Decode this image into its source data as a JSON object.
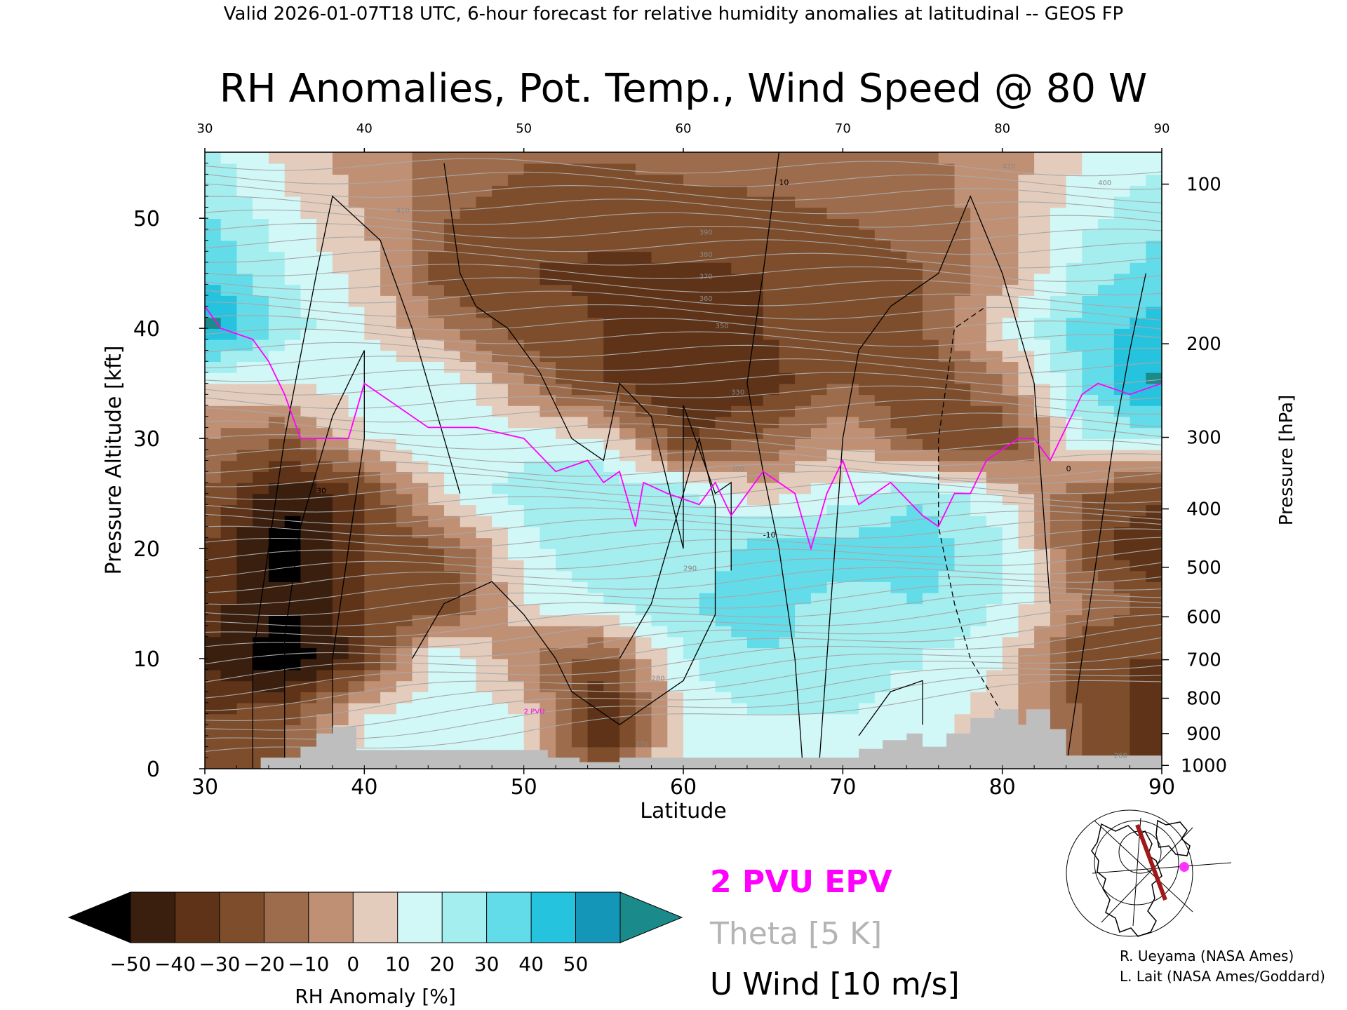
{
  "header": {
    "valid_line": "Valid 2026-01-07T18 UTC, 6-hour forecast for relative humidity anomalies at latitudinal -- GEOS FP"
  },
  "chart_data": {
    "type": "heatmap",
    "title": "RH Anomalies, Pot. Temp., Wind Speed @ 80 W",
    "xlabel": "Latitude",
    "ylabel_left": "Pressure Altitude [kft]",
    "ylabel_right": "Pressure [hPa]",
    "xlim": [
      30,
      90
    ],
    "ylim": [
      0,
      56
    ],
    "x_ticks_bottom": [
      "30",
      "40",
      "50",
      "60",
      "70",
      "80",
      "90"
    ],
    "x_ticks_top": [
      "30",
      "40",
      "50",
      "60",
      "70",
      "80",
      "90"
    ],
    "y_ticks_left": [
      {
        "value": 0,
        "label": "0"
      },
      {
        "value": 10,
        "label": "10"
      },
      {
        "value": 20,
        "label": "20"
      },
      {
        "value": 30,
        "label": "30"
      },
      {
        "value": 40,
        "label": "40"
      },
      {
        "value": 50,
        "label": "50"
      }
    ],
    "y_ticks_right": [
      {
        "kft": 0.3,
        "label": "1000"
      },
      {
        "kft": 3.2,
        "label": "900"
      },
      {
        "kft": 6.4,
        "label": "800"
      },
      {
        "kft": 9.9,
        "label": "700"
      },
      {
        "kft": 13.8,
        "label": "600"
      },
      {
        "kft": 18.3,
        "label": "500"
      },
      {
        "kft": 23.6,
        "label": "400"
      },
      {
        "kft": 30.1,
        "label": "300"
      },
      {
        "kft": 38.6,
        "label": "200"
      },
      {
        "kft": 53.1,
        "label": "100"
      }
    ],
    "colorbar": {
      "label": "RH Anomaly [%]",
      "tick_labels": [
        "−50",
        "−40",
        "−30",
        "−20",
        "−10",
        "0",
        "10",
        "20",
        "30",
        "40",
        "50"
      ],
      "bins": [
        -50,
        -40,
        -30,
        -20,
        -10,
        0,
        10,
        20,
        30,
        40,
        50
      ],
      "colors": [
        "#3a1e0e",
        "#5e3318",
        "#7d4d2c",
        "#9d6c4c",
        "#c09075",
        "#e4ccbc",
        "#d2f7f7",
        "#a4eef0",
        "#63dcea",
        "#26c3df",
        "#1496b8"
      ],
      "under_color": "#000000",
      "over_color": "#1a8a8a"
    },
    "rh_anomaly_grid": {
      "latitudes": [
        30,
        35,
        40,
        45,
        50,
        55,
        60,
        65,
        70,
        75,
        80,
        85,
        90
      ],
      "altitudes_kft": [
        55,
        45,
        40,
        35,
        30,
        25,
        20,
        15,
        10,
        5,
        0
      ],
      "values": [
        [
          25,
          8,
          -5,
          -15,
          -20,
          -20,
          -18,
          -16,
          -15,
          -12,
          -5,
          10,
          20
        ],
        [
          40,
          20,
          5,
          -25,
          -30,
          -32,
          -32,
          -30,
          -25,
          -20,
          -5,
          25,
          35
        ],
        [
          55,
          25,
          10,
          -10,
          -25,
          -30,
          -35,
          -30,
          -25,
          -20,
          10,
          35,
          45
        ],
        [
          10,
          10,
          15,
          20,
          -10,
          -30,
          -40,
          -35,
          -20,
          -30,
          -10,
          30,
          55
        ],
        [
          -10,
          -20,
          10,
          20,
          15,
          10,
          -30,
          -20,
          0,
          -25,
          -30,
          20,
          25
        ],
        [
          -20,
          -50,
          -30,
          10,
          25,
          30,
          25,
          5,
          15,
          30,
          10,
          -20,
          -30
        ],
        [
          -30,
          -55,
          -30,
          -20,
          15,
          30,
          20,
          35,
          35,
          35,
          25,
          -25,
          -40
        ],
        [
          -35,
          -50,
          -30,
          -30,
          10,
          20,
          30,
          35,
          25,
          30,
          20,
          -10,
          -25
        ],
        [
          -40,
          -60,
          -35,
          20,
          -10,
          -25,
          20,
          30,
          25,
          20,
          10,
          -30,
          -30
        ],
        [
          -30,
          -25,
          10,
          15,
          10,
          -45,
          10,
          20,
          20,
          15,
          5,
          -20,
          -40
        ],
        [
          -25,
          -20,
          15,
          20,
          10,
          -25,
          15,
          15,
          10,
          10,
          5,
          -20,
          -35
        ]
      ]
    },
    "contour_labels": {
      "theta": [
        "420",
        "410",
        "400",
        "390",
        "380",
        "370",
        "360",
        "350",
        "330",
        "300",
        "290",
        "280",
        "270",
        "260"
      ],
      "wind": [
        "10",
        "0",
        "-10",
        "30"
      ],
      "epv": "2 PVU"
    },
    "surface_terrain_kft": [
      {
        "lat": 30.0,
        "alt": 0.0
      },
      {
        "lat": 33.5,
        "alt": 0.0
      },
      {
        "lat": 33.5,
        "alt": 1.0
      },
      {
        "lat": 36.0,
        "alt": 1.0
      },
      {
        "lat": 36.0,
        "alt": 2.0
      },
      {
        "lat": 37.0,
        "alt": 2.0
      },
      {
        "lat": 37.0,
        "alt": 3.2
      },
      {
        "lat": 38.0,
        "alt": 3.2
      },
      {
        "lat": 38.0,
        "alt": 3.8
      },
      {
        "lat": 39.5,
        "alt": 3.8
      },
      {
        "lat": 39.5,
        "alt": 1.7
      },
      {
        "lat": 51.5,
        "alt": 1.7
      },
      {
        "lat": 51.5,
        "alt": 1.0
      },
      {
        "lat": 53.5,
        "alt": 1.0
      },
      {
        "lat": 53.5,
        "alt": 0.6
      },
      {
        "lat": 56.0,
        "alt": 0.6
      },
      {
        "lat": 56.0,
        "alt": 1.0
      },
      {
        "lat": 71.0,
        "alt": 1.0
      },
      {
        "lat": 71.0,
        "alt": 1.8
      },
      {
        "lat": 72.5,
        "alt": 1.8
      },
      {
        "lat": 72.5,
        "alt": 2.6
      },
      {
        "lat": 74.0,
        "alt": 2.6
      },
      {
        "lat": 74.0,
        "alt": 3.2
      },
      {
        "lat": 75.0,
        "alt": 3.2
      },
      {
        "lat": 75.0,
        "alt": 2.0
      },
      {
        "lat": 76.5,
        "alt": 2.0
      },
      {
        "lat": 76.5,
        "alt": 3.2
      },
      {
        "lat": 78.0,
        "alt": 3.2
      },
      {
        "lat": 78.0,
        "alt": 4.6
      },
      {
        "lat": 79.5,
        "alt": 4.6
      },
      {
        "lat": 79.5,
        "alt": 5.4
      },
      {
        "lat": 81.0,
        "alt": 5.4
      },
      {
        "lat": 81.0,
        "alt": 4.0
      },
      {
        "lat": 81.5,
        "alt": 4.0
      },
      {
        "lat": 81.5,
        "alt": 5.4
      },
      {
        "lat": 83.0,
        "alt": 5.4
      },
      {
        "lat": 83.0,
        "alt": 3.6
      },
      {
        "lat": 84.0,
        "alt": 3.6
      },
      {
        "lat": 84.0,
        "alt": 1.2
      },
      {
        "lat": 90.0,
        "alt": 1.2
      },
      {
        "lat": 90.0,
        "alt": 0.0
      }
    ]
  },
  "legend": {
    "epv_label": "2 PVU EPV",
    "theta_label": "Theta [5 K]",
    "wind_label": "U Wind [10 m/s]",
    "epv_color": "#ff00ff",
    "theta_color": "#b4b4b4",
    "wind_color": "#000000"
  },
  "credits": {
    "line1": "R. Ueyama (NASA Ames)",
    "line2": "L. Lait (NASA Ames/Goddard)"
  },
  "colors": {
    "terrain": "#bebebe",
    "theta_lines": "#a8a8a8",
    "map_marker": "#ff33ff",
    "section_line": "#a01818"
  }
}
